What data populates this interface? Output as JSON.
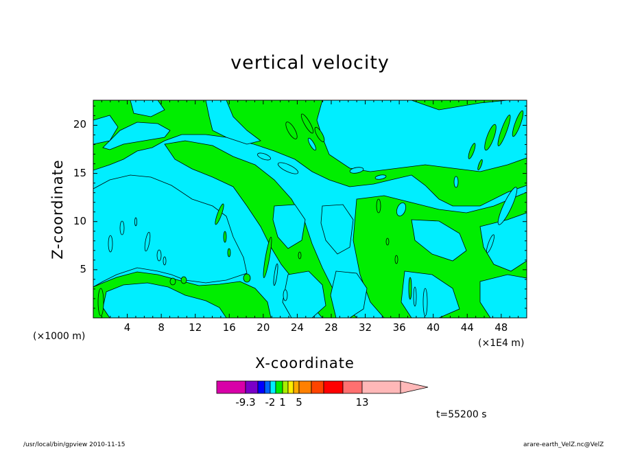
{
  "chart_data": {
    "type": "heatmap",
    "title": "vertical velocity",
    "xlabel": "X-coordinate",
    "ylabel": "Z-coordinate",
    "x_unit_left": "(×1000 m)",
    "x_unit_right": "(×1E4 m)",
    "x_ticks": [
      4,
      8,
      12,
      16,
      20,
      24,
      28,
      32,
      36,
      40,
      44,
      48
    ],
    "y_ticks": [
      5,
      10,
      15,
      20
    ],
    "xlim": [
      0,
      51
    ],
    "ylim": [
      0,
      22.6
    ],
    "colorbar": {
      "labels": [
        "-9.3",
        "-2",
        "1",
        "5",
        "13"
      ],
      "colors": [
        "#d800a8",
        "#7a00c8",
        "#0000ff",
        "#0066ff",
        "#00eeff",
        "#00ee00",
        "#aaee00",
        "#ffee00",
        "#ffaa00",
        "#ff8000",
        "#ff4400",
        "#ff0000",
        "#ff7070",
        "#ffb8b8"
      ]
    },
    "time_label": "t=55200 s",
    "footer_left": "/usr/local/bin/gpview   2010-11-15",
    "footer_right": "arare-earth_VelZ.nc@VelZ",
    "field_colors": {
      "background": "#00eeff",
      "positive": "#00ee00"
    }
  }
}
